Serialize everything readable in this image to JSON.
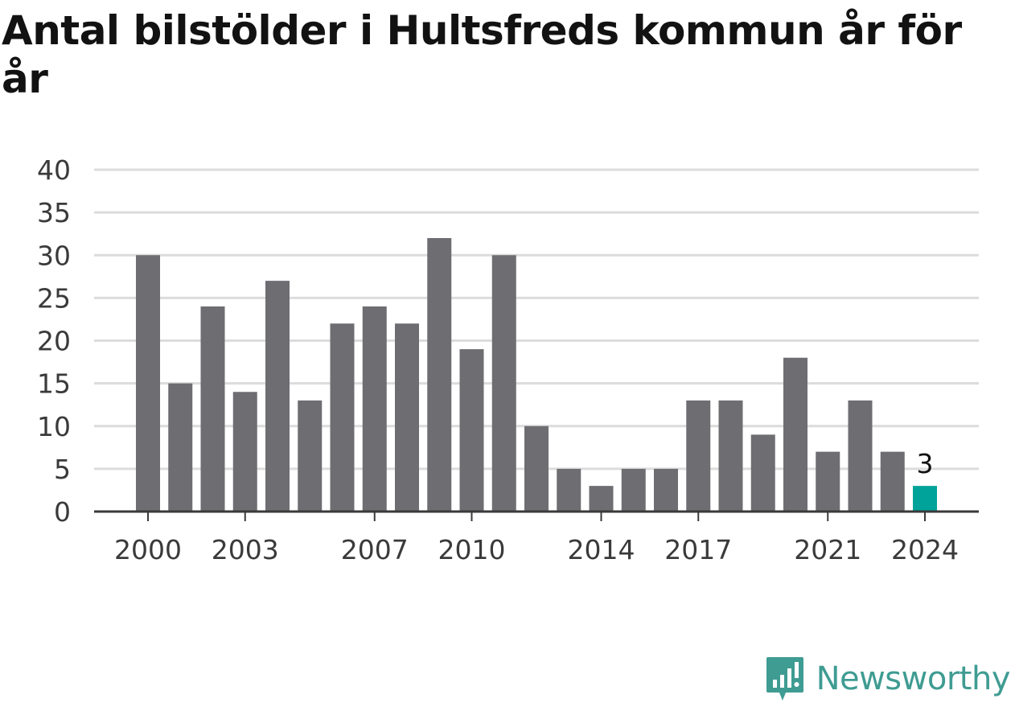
{
  "chart_data": {
    "type": "bar",
    "title": "Antal bilstölder i Hultsfreds kommun år för år",
    "xlabel": "",
    "ylabel": "",
    "categories": [
      2000,
      2001,
      2002,
      2003,
      2004,
      2005,
      2006,
      2007,
      2008,
      2009,
      2010,
      2011,
      2012,
      2013,
      2014,
      2015,
      2016,
      2017,
      2018,
      2019,
      2020,
      2021,
      2022,
      2023,
      2024
    ],
    "values": [
      30,
      15,
      24,
      14,
      27,
      13,
      22,
      24,
      22,
      32,
      19,
      30,
      10,
      5,
      3,
      5,
      5,
      13,
      13,
      9,
      18,
      7,
      13,
      7,
      3
    ],
    "ylim": [
      0,
      40
    ],
    "yticks": [
      0,
      5,
      10,
      15,
      20,
      25,
      30,
      35,
      40
    ],
    "xticks": [
      "2000",
      "2003",
      "2007",
      "2010",
      "2014",
      "2017",
      "2021",
      "2024"
    ],
    "highlight": {
      "category": 2024,
      "label": "3"
    },
    "grid": true,
    "colors": {
      "bar": "#6e6d72",
      "highlight": "#00a39a",
      "grid": "#dcdcdc",
      "axis": "#3a3a3a"
    }
  },
  "branding": {
    "name": "Newsworthy",
    "color": "#3f9c92"
  }
}
